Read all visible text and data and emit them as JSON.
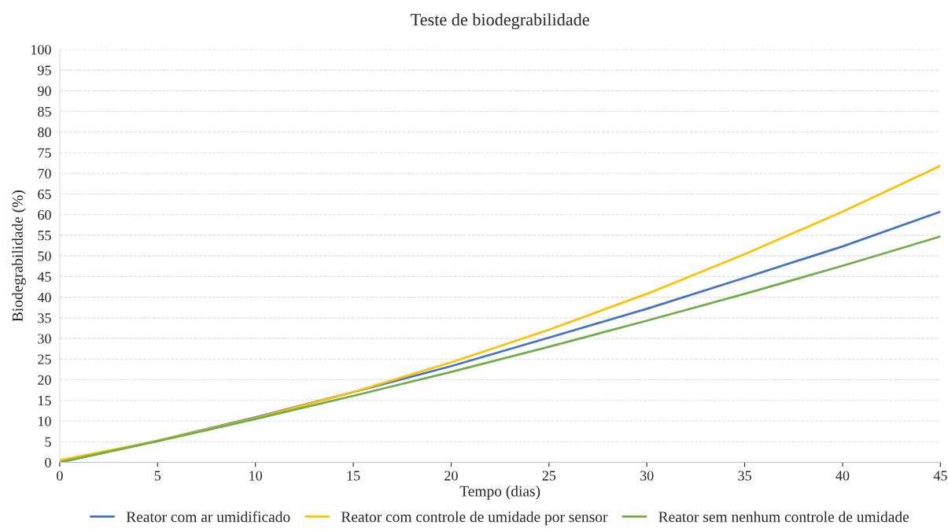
{
  "chart_data": {
    "type": "line",
    "title": "Teste de biodegrabilidade",
    "xlabel": "Tempo (dias)",
    "ylabel": "Biodegrabilidade (%)",
    "x": [
      0,
      5,
      10,
      15,
      20,
      25,
      30,
      35,
      40,
      45
    ],
    "series": [
      {
        "name": "Reator com ar umidificado",
        "color": "#4472c4",
        "values": [
          0,
          5.2,
          10.9,
          17.0,
          23.3,
          30.2,
          37.2,
          44.7,
          52.3,
          60.7
        ]
      },
      {
        "name": "Reator com controle de umidade por sensor",
        "color": "#ffc000",
        "values": [
          0.5,
          5.2,
          10.7,
          17.0,
          24.2,
          32.1,
          40.8,
          50.4,
          60.7,
          71.8
        ]
      },
      {
        "name": "Reator sem nenhum controle de umidade",
        "color": "#70ad47",
        "values": [
          0,
          5.1,
          10.5,
          16.1,
          21.9,
          28.0,
          34.3,
          40.8,
          47.6,
          54.7
        ]
      }
    ],
    "xlim": [
      0,
      45
    ],
    "xticks": [
      0,
      5,
      10,
      15,
      20,
      25,
      30,
      35,
      40,
      45
    ],
    "ylim": [
      0,
      100
    ],
    "yticks": [
      0,
      5,
      10,
      15,
      20,
      25,
      30,
      35,
      40,
      45,
      50,
      55,
      60,
      65,
      70,
      75,
      80,
      85,
      90,
      95,
      100
    ],
    "grid": "y",
    "legend": "bottom",
    "marker": "none",
    "line_style": "solid"
  }
}
